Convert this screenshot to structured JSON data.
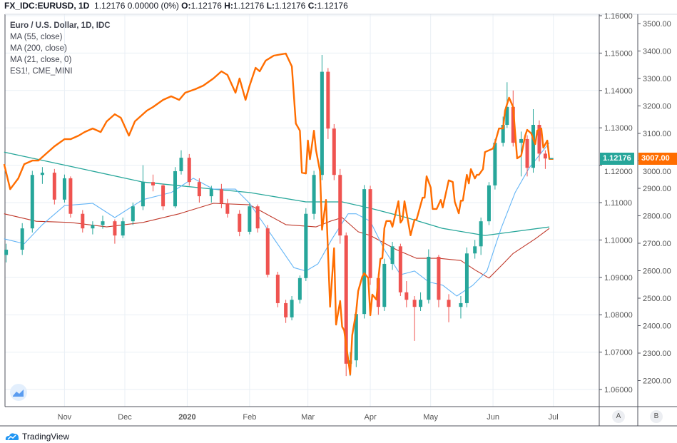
{
  "header": {
    "symbol": "FX_IDC:EURUSD, 1D",
    "last": "1.12176",
    "change": "0.00000 (0%)",
    "o_label": "O:",
    "o": "1.12176",
    "h_label": "H:",
    "h": "1.12176",
    "l_label": "L:",
    "l": "1.12176",
    "c_label": "C:",
    "c": "1.12176"
  },
  "legend": [
    "Euro / U.S. Dollar, 1D, IDC",
    "MA (55, close)",
    "MA (200, close)",
    "MA (21, close, 0)",
    "ES1!, CME_MINI"
  ],
  "badges": {
    "eurusd": "1.12176",
    "es": "3007.00"
  },
  "scale_buttons": [
    "A",
    "B"
  ],
  "branding": "TradingView",
  "colors": {
    "up": "#26a69a",
    "down": "#ef5350",
    "es": "#ff6d00",
    "ma_fast": "#64b5f6",
    "ma_mid": "#c0392b",
    "ma_slow": "#26a69a",
    "grid": "#e9eff5"
  },
  "chart_data": {
    "type": "candlestick",
    "x_ticks": [
      [
        "2019-11-01",
        "Nov"
      ],
      [
        "2019-12-01",
        "Dec"
      ],
      [
        "2020-01-01",
        "2020"
      ],
      [
        "2020-02-01",
        "Feb"
      ],
      [
        "2020-03-01",
        "Mar"
      ],
      [
        "2020-04-01",
        "Apr"
      ],
      [
        "2020-05-01",
        "May"
      ],
      [
        "2020-06-01",
        "Jun"
      ],
      [
        "2020-07-01",
        "Jul"
      ]
    ],
    "left_axis": {
      "range": [
        1.06,
        1.16
      ],
      "ticks": [
        "1.06000",
        "1.07000",
        "1.08000",
        "1.09000",
        "1.10000",
        "1.11000",
        "1.12000",
        "1.13000",
        "1.14000",
        "1.15000",
        "1.16000"
      ]
    },
    "right_axis": {
      "range": [
        2200,
        3500
      ],
      "ticks": [
        "2200.00",
        "2300.00",
        "2400.00",
        "2500.00",
        "2600.00",
        "2700.00",
        "2800.00",
        "2900.00",
        "3000.00",
        "3100.00",
        "3200.00",
        "3300.00",
        "3400.00",
        "3500.00"
      ]
    },
    "candles": [
      [
        "2019-10-03",
        1.096,
        1.099,
        1.094,
        1.0974
      ],
      [
        "2019-10-11",
        1.0974,
        1.1045,
        1.096,
        1.1031
      ],
      [
        "2019-10-16",
        1.1031,
        1.1185,
        1.102,
        1.1174
      ],
      [
        "2019-10-21",
        1.1174,
        1.1195,
        1.115,
        1.118
      ],
      [
        "2019-10-27",
        1.118,
        1.119,
        1.1095,
        1.1108
      ],
      [
        "2019-11-01",
        1.1108,
        1.1175,
        1.11,
        1.1165
      ],
      [
        "2019-11-04",
        1.1165,
        1.117,
        1.106,
        1.107
      ],
      [
        "2019-11-10",
        1.107,
        1.108,
        1.102,
        1.1031
      ],
      [
        "2019-11-15",
        1.1031,
        1.105,
        1.1015,
        1.104
      ],
      [
        "2019-11-20",
        1.104,
        1.1065,
        1.103,
        1.105
      ],
      [
        "2019-11-26",
        1.105,
        1.1055,
        1.099,
        1.1012
      ],
      [
        "2019-11-30",
        1.1012,
        1.106,
        1.1005,
        1.105
      ],
      [
        "2019-12-05",
        1.105,
        1.11,
        1.104,
        1.109
      ],
      [
        "2019-12-10",
        1.109,
        1.12,
        1.108,
        1.1155
      ],
      [
        "2019-12-15",
        1.1155,
        1.1175,
        1.113,
        1.1146
      ],
      [
        "2019-12-20",
        1.1146,
        1.115,
        1.108,
        1.109
      ],
      [
        "2019-12-26",
        1.109,
        1.1195,
        1.1085,
        1.1184
      ],
      [
        "2019-12-29",
        1.1184,
        1.124,
        1.1175,
        1.122
      ],
      [
        "2020-01-02",
        1.122,
        1.123,
        1.1145,
        1.1155
      ],
      [
        "2020-01-07",
        1.1155,
        1.1165,
        1.11,
        1.1117
      ],
      [
        "2020-01-13",
        1.1117,
        1.1145,
        1.11,
        1.1136
      ],
      [
        "2020-01-18",
        1.1136,
        1.115,
        1.1085,
        1.1098
      ],
      [
        "2020-01-21",
        1.1098,
        1.111,
        1.106,
        1.107
      ],
      [
        "2020-01-27",
        1.107,
        1.108,
        1.101,
        1.1022
      ],
      [
        "2020-02-01",
        1.1022,
        1.11,
        1.1015,
        1.109
      ],
      [
        "2020-02-05",
        1.109,
        1.1095,
        1.102,
        1.1031
      ],
      [
        "2020-02-10",
        1.1031,
        1.104,
        1.09,
        1.0907
      ],
      [
        "2020-02-15",
        1.0907,
        1.0915,
        1.082,
        1.0831
      ],
      [
        "2020-02-19",
        1.0831,
        1.084,
        1.0778,
        1.0793
      ],
      [
        "2020-02-22",
        1.0793,
        1.085,
        1.0785,
        1.084
      ],
      [
        "2020-02-26",
        1.084,
        1.0905,
        1.083,
        1.0898
      ],
      [
        "2020-02-29",
        1.0898,
        1.1085,
        1.089,
        1.107
      ],
      [
        "2020-03-04",
        1.107,
        1.1185,
        1.1055,
        1.1174
      ],
      [
        "2020-03-08",
        1.1174,
        1.1495,
        1.116,
        1.145
      ],
      [
        "2020-03-11",
        1.145,
        1.146,
        1.127,
        1.1298
      ],
      [
        "2020-03-14",
        1.1298,
        1.131,
        1.116,
        1.1174
      ],
      [
        "2020-03-17",
        1.1174,
        1.119,
        1.099,
        1.1012
      ],
      [
        "2020-03-20",
        1.1012,
        1.102,
        1.0636,
        1.0669
      ],
      [
        "2020-03-22",
        1.0669,
        1.07,
        1.0636,
        1.0678
      ],
      [
        "2020-03-25",
        1.0678,
        1.082,
        1.066,
        1.0802
      ],
      [
        "2020-03-29",
        1.0802,
        1.1147,
        1.079,
        1.1136
      ],
      [
        "2020-04-01",
        1.1136,
        1.1145,
        1.088,
        1.0898
      ],
      [
        "2020-04-05",
        1.0898,
        1.091,
        1.08,
        1.0821
      ],
      [
        "2020-04-08",
        1.0821,
        1.095,
        1.081,
        1.0936
      ],
      [
        "2020-04-12",
        1.0936,
        1.0995,
        1.092,
        1.0983
      ],
      [
        "2020-04-16",
        1.0983,
        1.099,
        1.085,
        1.086
      ],
      [
        "2020-04-19",
        1.086,
        1.089,
        1.082,
        1.084
      ],
      [
        "2020-04-23",
        1.084,
        1.085,
        1.073,
        1.0821
      ],
      [
        "2020-04-26",
        1.0821,
        1.086,
        1.081,
        1.084
      ],
      [
        "2020-04-30",
        1.084,
        1.0975,
        1.083,
        1.0955
      ],
      [
        "2020-05-05",
        1.0955,
        1.096,
        1.082,
        1.084
      ],
      [
        "2020-05-10",
        1.084,
        1.0855,
        1.078,
        1.0821
      ],
      [
        "2020-05-16",
        1.0821,
        1.085,
        1.079,
        1.0831
      ],
      [
        "2020-05-19",
        1.0831,
        1.098,
        1.082,
        1.0964
      ],
      [
        "2020-05-23",
        1.0964,
        1.1,
        1.095,
        1.0983
      ],
      [
        "2020-05-26",
        1.0983,
        1.106,
        1.096,
        1.105
      ],
      [
        "2020-05-30",
        1.105,
        1.1155,
        1.104,
        1.1146
      ],
      [
        "2020-06-02",
        1.1146,
        1.127,
        1.1135,
        1.126
      ],
      [
        "2020-06-06",
        1.126,
        1.133,
        1.125,
        1.1308
      ],
      [
        "2020-06-08",
        1.1308,
        1.1422,
        1.13,
        1.1356
      ],
      [
        "2020-06-11",
        1.1356,
        1.14,
        1.125,
        1.126
      ],
      [
        "2020-06-15",
        1.126,
        1.129,
        1.117,
        1.127
      ],
      [
        "2020-06-18",
        1.127,
        1.128,
        1.117,
        1.1193
      ],
      [
        "2020-06-21",
        1.1193,
        1.135,
        1.118,
        1.1308
      ],
      [
        "2020-06-24",
        1.1308,
        1.132,
        1.121,
        1.1231
      ],
      [
        "2020-06-27",
        1.1231,
        1.124,
        1.119,
        1.1218
      ]
    ],
    "ma_fast": [
      [
        "2019-10-02",
        1.1003
      ],
      [
        "2019-10-12",
        1.099
      ],
      [
        "2019-10-21",
        1.1041
      ],
      [
        "2019-11-01",
        1.1092
      ],
      [
        "2019-11-15",
        1.1098
      ],
      [
        "2019-11-26",
        1.106
      ],
      [
        "2019-12-10",
        1.1108
      ],
      [
        "2019-12-24",
        1.1127
      ],
      [
        "2020-01-04",
        1.1165
      ],
      [
        "2020-01-14",
        1.1136
      ],
      [
        "2020-01-25",
        1.1136
      ],
      [
        "2020-02-01",
        1.1098
      ],
      [
        "2020-02-12",
        1.1012
      ],
      [
        "2020-02-23",
        1.0926
      ],
      [
        "2020-02-29",
        1.0917
      ],
      [
        "2020-03-06",
        1.0936
      ],
      [
        "2020-03-13",
        1.1003
      ],
      [
        "2020-03-21",
        1.107
      ],
      [
        "2020-03-25",
        1.107
      ],
      [
        "2020-04-01",
        1.105
      ],
      [
        "2020-04-08",
        1.0974
      ],
      [
        "2020-04-16",
        1.0907
      ],
      [
        "2020-04-23",
        1.0917
      ],
      [
        "2020-04-30",
        1.0888
      ],
      [
        "2020-05-07",
        1.0879
      ],
      [
        "2020-05-14",
        1.085
      ],
      [
        "2020-05-22",
        1.0879
      ],
      [
        "2020-05-29",
        1.0917
      ],
      [
        "2020-06-05",
        1.1031
      ],
      [
        "2020-06-12",
        1.1127
      ],
      [
        "2020-06-19",
        1.1193
      ],
      [
        "2020-06-29",
        1.126
      ]
    ],
    "ma_mid": [
      [
        "2019-10-02",
        1.107
      ],
      [
        "2019-10-18",
        1.105
      ],
      [
        "2019-11-04",
        1.1047
      ],
      [
        "2019-11-22",
        1.1035
      ],
      [
        "2019-12-10",
        1.1047
      ],
      [
        "2019-12-28",
        1.107
      ],
      [
        "2020-01-14",
        1.1098
      ],
      [
        "2020-02-01",
        1.1094
      ],
      [
        "2020-02-19",
        1.1041
      ],
      [
        "2020-03-05",
        1.1035
      ],
      [
        "2020-03-12",
        1.105
      ],
      [
        "2020-03-18",
        1.106
      ],
      [
        "2020-03-26",
        1.1022
      ],
      [
        "2020-04-01",
        1.1012
      ],
      [
        "2020-04-14",
        1.0974
      ],
      [
        "2020-04-24",
        1.0951
      ],
      [
        "2020-05-05",
        1.0951
      ],
      [
        "2020-05-16",
        1.0945
      ],
      [
        "2020-05-23",
        1.092
      ],
      [
        "2020-05-30",
        1.0898
      ],
      [
        "2020-06-06",
        1.0936
      ],
      [
        "2020-06-11",
        1.0964
      ],
      [
        "2020-06-22",
        1.1003
      ],
      [
        "2020-06-29",
        1.1031
      ]
    ],
    "ma_slow": [
      [
        "2019-10-02",
        1.1235
      ],
      [
        "2019-11-04",
        1.1197
      ],
      [
        "2019-12-10",
        1.1155
      ],
      [
        "2020-01-14",
        1.1136
      ],
      [
        "2020-02-01",
        1.1127
      ],
      [
        "2020-02-29",
        1.1102
      ],
      [
        "2020-03-18",
        1.1102
      ],
      [
        "2020-04-01",
        1.1085
      ],
      [
        "2020-04-19",
        1.106
      ],
      [
        "2020-05-07",
        1.1031
      ],
      [
        "2020-05-28",
        1.1012
      ],
      [
        "2020-06-11",
        1.1022
      ],
      [
        "2020-06-29",
        1.1035
      ]
    ],
    "es": [
      [
        "2019-10-02",
        2988
      ],
      [
        "2019-10-05",
        2897
      ],
      [
        "2019-10-09",
        2936
      ],
      [
        "2019-10-12",
        2988
      ],
      [
        "2019-10-16",
        3001
      ],
      [
        "2019-10-19",
        3001
      ],
      [
        "2019-10-23",
        3027
      ],
      [
        "2019-10-27",
        3053
      ],
      [
        "2019-11-01",
        3079
      ],
      [
        "2019-11-04",
        3079
      ],
      [
        "2019-11-08",
        3092
      ],
      [
        "2019-11-11",
        3105
      ],
      [
        "2019-11-15",
        3118
      ],
      [
        "2019-11-19",
        3105
      ],
      [
        "2019-11-22",
        3144
      ],
      [
        "2019-11-26",
        3170
      ],
      [
        "2019-11-29",
        3157
      ],
      [
        "2019-12-03",
        3092
      ],
      [
        "2019-12-06",
        3144
      ],
      [
        "2019-12-12",
        3183
      ],
      [
        "2019-12-15",
        3196
      ],
      [
        "2019-12-20",
        3222
      ],
      [
        "2019-12-24",
        3235
      ],
      [
        "2019-12-28",
        3222
      ],
      [
        "2019-12-31",
        3248
      ],
      [
        "2020-01-05",
        3261
      ],
      [
        "2020-01-09",
        3274
      ],
      [
        "2020-01-14",
        3300
      ],
      [
        "2020-01-18",
        3326
      ],
      [
        "2020-01-21",
        3313
      ],
      [
        "2020-01-25",
        3248
      ],
      [
        "2020-01-27",
        3300
      ],
      [
        "2020-01-30",
        3222
      ],
      [
        "2020-02-01",
        3274
      ],
      [
        "2020-02-04",
        3339
      ],
      [
        "2020-02-06",
        3326
      ],
      [
        "2020-02-09",
        3365
      ],
      [
        "2020-02-13",
        3383
      ],
      [
        "2020-02-19",
        3391
      ],
      [
        "2020-02-22",
        3344
      ],
      [
        "2020-02-24",
        3136
      ],
      [
        "2020-02-26",
        3110
      ],
      [
        "2020-02-27",
        2957
      ],
      [
        "2020-02-29",
        2954
      ],
      [
        "2020-03-01",
        3074
      ],
      [
        "2020-03-02",
        3006
      ],
      [
        "2020-03-04",
        3110
      ],
      [
        "2020-03-05",
        3040
      ],
      [
        "2020-03-07",
        2962
      ],
      [
        "2020-03-08",
        2749
      ],
      [
        "2020-03-10",
        2858
      ],
      [
        "2020-03-12",
        2469
      ],
      [
        "2020-03-14",
        2682
      ],
      [
        "2020-03-15",
        2404
      ],
      [
        "2020-03-17",
        2490
      ],
      [
        "2020-03-18",
        2396
      ],
      [
        "2020-03-19",
        2383
      ],
      [
        "2020-03-21",
        2279
      ],
      [
        "2020-03-22",
        2222
      ],
      [
        "2020-03-23",
        2365
      ],
      [
        "2020-03-25",
        2451
      ],
      [
        "2020-03-26",
        2526
      ],
      [
        "2020-03-28",
        2578
      ],
      [
        "2020-03-29",
        2591
      ],
      [
        "2020-03-31",
        2573
      ],
      [
        "2020-04-01",
        2438
      ],
      [
        "2020-04-02",
        2513
      ],
      [
        "2020-04-04",
        2495
      ],
      [
        "2020-04-06",
        2643
      ],
      [
        "2020-04-07",
        2646
      ],
      [
        "2020-04-08",
        2755
      ],
      [
        "2020-04-09",
        2781
      ],
      [
        "2020-04-11",
        2781
      ],
      [
        "2020-04-12",
        2760
      ],
      [
        "2020-04-15",
        2853
      ],
      [
        "2020-04-16",
        2775
      ],
      [
        "2020-04-17",
        2786
      ],
      [
        "2020-04-18",
        2853
      ],
      [
        "2020-04-21",
        2729
      ],
      [
        "2020-04-23",
        2786
      ],
      [
        "2020-04-24",
        2786
      ],
      [
        "2020-04-27",
        2866
      ],
      [
        "2020-04-28",
        2866
      ],
      [
        "2020-04-29",
        2944
      ],
      [
        "2020-05-01",
        2903
      ],
      [
        "2020-05-02",
        2825
      ],
      [
        "2020-05-04",
        2825
      ],
      [
        "2020-05-06",
        2858
      ],
      [
        "2020-05-07",
        2830
      ],
      [
        "2020-05-10",
        2929
      ],
      [
        "2020-05-12",
        2923
      ],
      [
        "2020-05-13",
        2851
      ],
      [
        "2020-05-15",
        2809
      ],
      [
        "2020-05-16",
        2855
      ],
      [
        "2020-05-17",
        2855
      ],
      [
        "2020-05-19",
        2949
      ],
      [
        "2020-05-20",
        2918
      ],
      [
        "2020-05-21",
        2970
      ],
      [
        "2020-05-23",
        2936
      ],
      [
        "2020-05-24",
        2949
      ],
      [
        "2020-05-25",
        2949
      ],
      [
        "2020-05-27",
        2970
      ],
      [
        "2020-05-28",
        3032
      ],
      [
        "2020-06-01",
        3045
      ],
      [
        "2020-06-02",
        3066
      ],
      [
        "2020-06-04",
        3118
      ],
      [
        "2020-06-06",
        3118
      ],
      [
        "2020-06-07",
        3183
      ],
      [
        "2020-06-09",
        3230
      ],
      [
        "2020-06-11",
        3196
      ],
      [
        "2020-06-13",
        3009
      ],
      [
        "2020-06-15",
        3019
      ],
      [
        "2020-06-17",
        3092
      ],
      [
        "2020-06-18",
        3113
      ],
      [
        "2020-06-20",
        3100
      ],
      [
        "2020-06-21",
        3079
      ],
      [
        "2020-06-22",
        3061
      ],
      [
        "2020-06-23",
        3110
      ],
      [
        "2020-06-25",
        3118
      ],
      [
        "2020-06-26",
        3048
      ],
      [
        "2020-06-28",
        3074
      ],
      [
        "2020-06-29",
        3007
      ],
      [
        "2020-07-01",
        3007
      ]
    ],
    "grid": true
  }
}
